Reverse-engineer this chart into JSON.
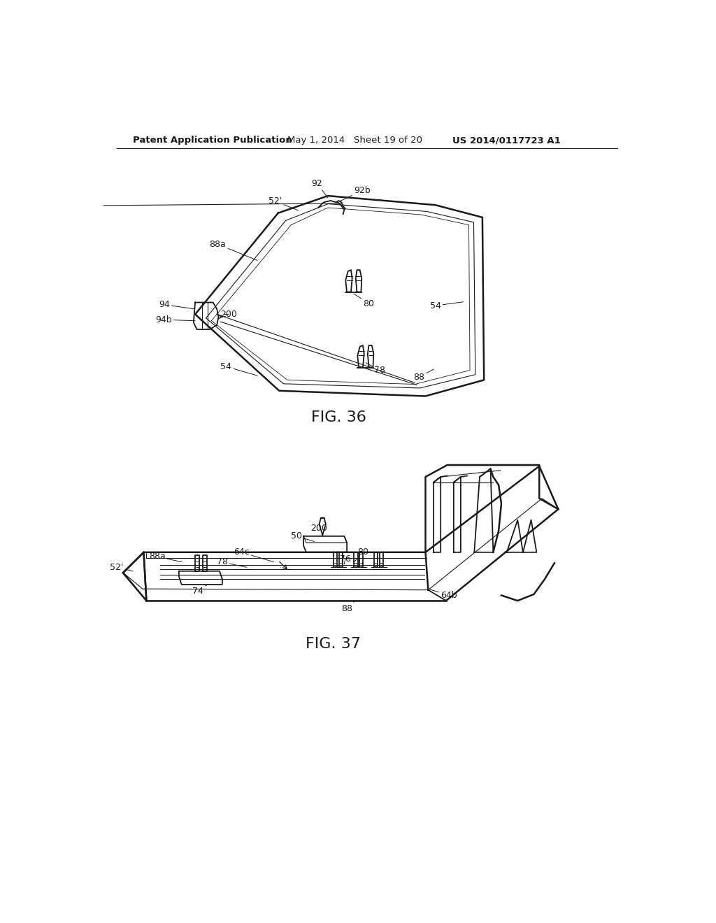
{
  "header_left": "Patent Application Publication",
  "header_mid": "May 1, 2014   Sheet 19 of 20",
  "header_right": "US 2014/0117723 A1",
  "fig36_label": "FIG. 36",
  "fig37_label": "FIG. 37",
  "bg_color": "#ffffff",
  "line_color": "#1a1a1a",
  "text_color": "#1a1a1a",
  "header_fontsize": 9.5,
  "fig_label_fontsize": 16,
  "ref_fontsize": 9
}
